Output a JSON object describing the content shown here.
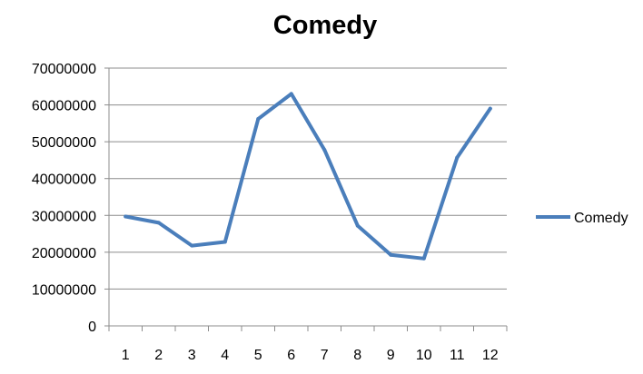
{
  "chart_data": {
    "type": "line",
    "title": "Comedy",
    "xlabel": "",
    "ylabel": "",
    "categories": [
      "1",
      "2",
      "3",
      "4",
      "5",
      "6",
      "7",
      "8",
      "9",
      "10",
      "11",
      "12"
    ],
    "series": [
      {
        "name": "Comedy",
        "color": "#4a7ebb",
        "values": [
          29700000,
          28000000,
          21800000,
          22800000,
          56200000,
          63000000,
          47800000,
          27200000,
          19300000,
          18300000,
          45700000,
          59000000
        ]
      }
    ],
    "ylim": [
      0,
      70000000
    ],
    "yticks": [
      "0",
      "10000000",
      "20000000",
      "30000000",
      "40000000",
      "50000000",
      "60000000",
      "70000000"
    ],
    "grid": true,
    "legend_position": "right"
  }
}
